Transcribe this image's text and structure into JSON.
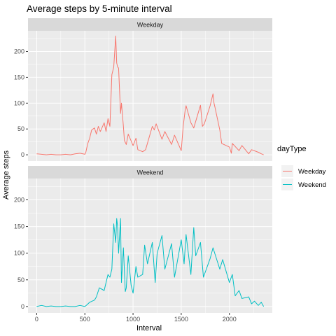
{
  "chart_data": {
    "type": "line",
    "title": "Average steps by 5-minute interval",
    "xlabel": "Interval",
    "ylabel": "Average steps",
    "xlim": [
      -90,
      2445
    ],
    "ylim": [
      -12,
      240
    ],
    "x_ticks": [
      0,
      500,
      1000,
      1500,
      2000
    ],
    "y_ticks": [
      0,
      50,
      100,
      150,
      200
    ],
    "legend": {
      "title": "dayType",
      "position": "right"
    },
    "facets": [
      "Weekday",
      "Weekend"
    ],
    "series": [
      {
        "name": "Weekday",
        "facet": "Weekday",
        "color": "#F8766D",
        "x": [
          0,
          50,
          100,
          150,
          200,
          250,
          300,
          350,
          400,
          450,
          500,
          510,
          530,
          550,
          570,
          600,
          620,
          640,
          660,
          700,
          720,
          740,
          760,
          780,
          800,
          810,
          820,
          830,
          840,
          850,
          860,
          870,
          880,
          900,
          910,
          930,
          950,
          1000,
          1030,
          1050,
          1100,
          1130,
          1200,
          1220,
          1240,
          1300,
          1330,
          1400,
          1430,
          1500,
          1520,
          1540,
          1550,
          1600,
          1630,
          1700,
          1720,
          1740,
          1800,
          1830,
          1840,
          1850,
          1900,
          1920,
          2000,
          2020,
          2030,
          2100,
          2130,
          2200,
          2230,
          2300,
          2330,
          2355
        ],
        "y": [
          2,
          1,
          0,
          1,
          0,
          0,
          1,
          0,
          2,
          3,
          1,
          5,
          22,
          32,
          48,
          52,
          40,
          55,
          45,
          62,
          45,
          70,
          55,
          155,
          170,
          200,
          230,
          178,
          170,
          168,
          125,
          80,
          100,
          55,
          28,
          20,
          40,
          18,
          32,
          10,
          6,
          10,
          55,
          48,
          60,
          30,
          45,
          20,
          38,
          8,
          55,
          85,
          95,
          62,
          52,
          96,
          55,
          60,
          95,
          118,
          100,
          92,
          48,
          22,
          15,
          3,
          22,
          8,
          18,
          2,
          10,
          5,
          2,
          0
        ]
      },
      {
        "name": "Weekend",
        "facet": "Weekend",
        "color": "#00BFC4",
        "x": [
          0,
          50,
          100,
          150,
          200,
          250,
          300,
          350,
          400,
          450,
          500,
          520,
          550,
          600,
          620,
          650,
          700,
          720,
          740,
          760,
          780,
          800,
          820,
          830,
          840,
          850,
          870,
          880,
          900,
          920,
          930,
          950,
          980,
          1000,
          1030,
          1050,
          1100,
          1120,
          1150,
          1200,
          1230,
          1250,
          1300,
          1330,
          1400,
          1430,
          1500,
          1530,
          1550,
          1600,
          1630,
          1650,
          1700,
          1730,
          1800,
          1830,
          1900,
          1930,
          2000,
          2030,
          2060,
          2100,
          2130,
          2200,
          2230,
          2260,
          2300,
          2330,
          2355
        ],
        "y": [
          0,
          2,
          0,
          1,
          0,
          0,
          1,
          0,
          0,
          2,
          0,
          3,
          8,
          12,
          18,
          35,
          30,
          45,
          60,
          55,
          70,
          155,
          120,
          165,
          150,
          100,
          165,
          45,
          110,
          28,
          35,
          95,
          40,
          25,
          75,
          55,
          60,
          115,
          80,
          120,
          45,
          100,
          133,
          70,
          118,
          55,
          125,
          80,
          135,
          60,
          148,
          95,
          120,
          55,
          90,
          110,
          70,
          88,
          45,
          60,
          20,
          30,
          15,
          18,
          5,
          10,
          2,
          8,
          0
        ]
      }
    ]
  }
}
